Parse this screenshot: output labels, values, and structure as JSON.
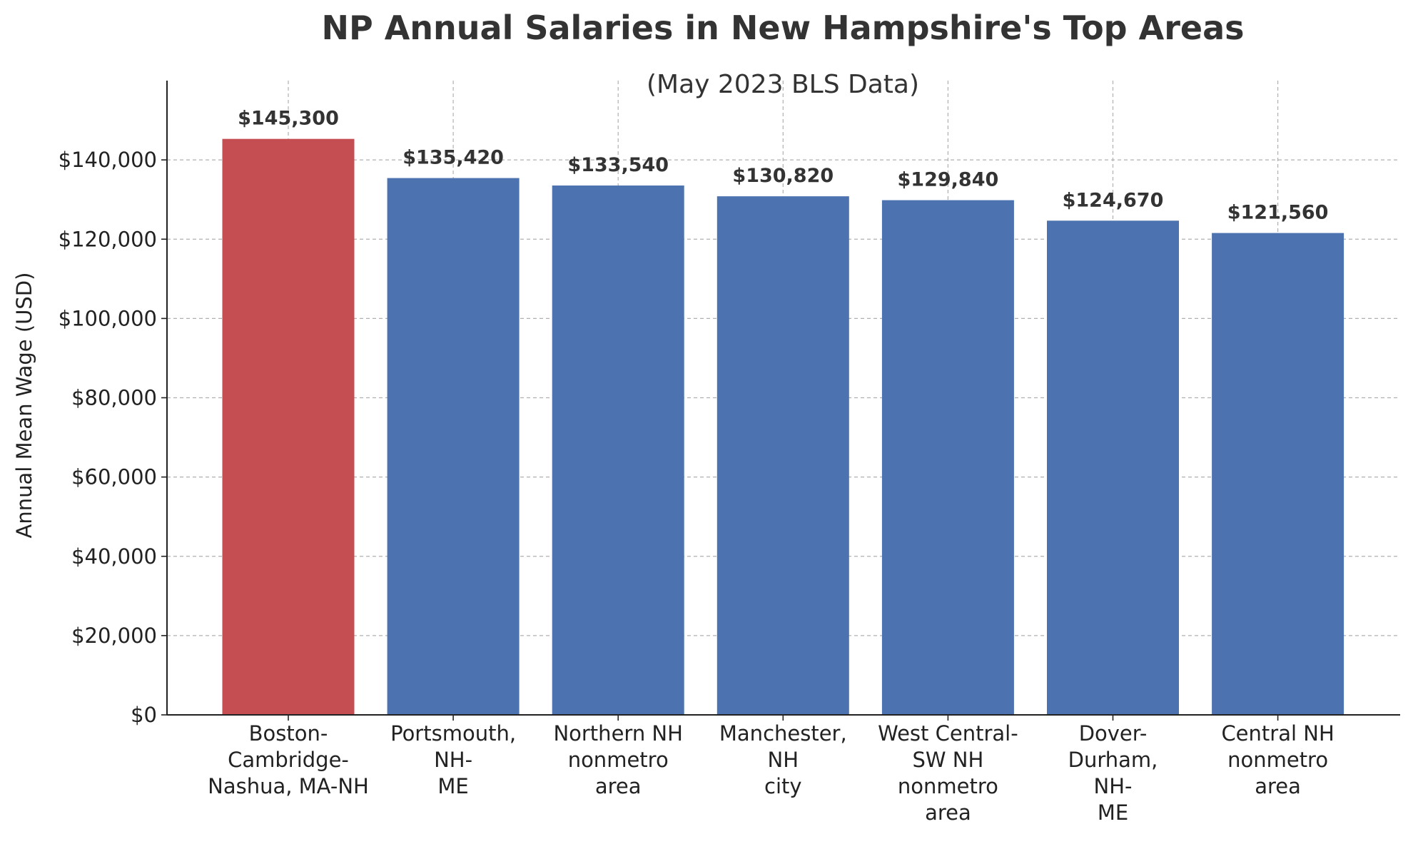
{
  "chart_data": {
    "type": "bar",
    "title": "NP Annual Salaries in New Hampshire's Top Areas",
    "subtitle": "(May 2023 BLS Data)",
    "xlabel": "",
    "ylabel": "Annual Mean Wage (USD)",
    "ylim": [
      0,
      160000
    ],
    "y_ticks": [
      0,
      20000,
      40000,
      60000,
      80000,
      100000,
      120000,
      140000
    ],
    "y_tick_labels": [
      "$0",
      "$20,000",
      "$40,000",
      "$60,000",
      "$80,000",
      "$100,000",
      "$120,000",
      "$140,000"
    ],
    "grid": true,
    "categories": [
      [
        "Boston-",
        "Cambridge-",
        "Nashua, MA-NH"
      ],
      [
        "Portsmouth,",
        "NH-",
        "ME"
      ],
      [
        "Northern NH",
        "nonmetro",
        "area"
      ],
      [
        "Manchester,",
        "NH",
        "city"
      ],
      [
        "West Central-",
        "SW NH",
        "nonmetro",
        "area"
      ],
      [
        "Dover-",
        "Durham,",
        "NH-",
        "ME"
      ],
      [
        "Central NH",
        "nonmetro",
        "area"
      ]
    ],
    "values": [
      145300,
      135420,
      133540,
      130820,
      129840,
      124670,
      121560
    ],
    "value_labels": [
      "$145,300",
      "$135,420",
      "$133,540",
      "$130,820",
      "$129,840",
      "$124,670",
      "$121,560"
    ],
    "bar_colors": [
      "#c44e52",
      "#4c72b0",
      "#4c72b0",
      "#4c72b0",
      "#4c72b0",
      "#4c72b0",
      "#4c72b0"
    ],
    "highlight_color": "#c44e52",
    "base_color": "#4c72b0"
  }
}
